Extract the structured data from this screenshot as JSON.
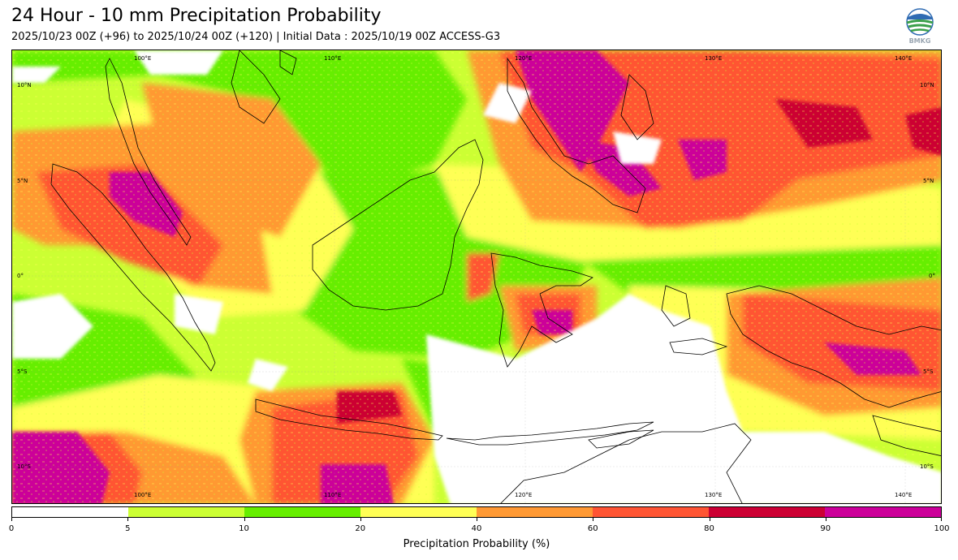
{
  "header": {
    "title": "24 Hour - 10 mm Precipitation Probability",
    "subtitle": "2025/10/23 00Z (+96) to 2025/10/24 00Z (+120) | Initial Data : 2025/10/19 00Z ACCESS-G3"
  },
  "logo": {
    "text": "BMKG"
  },
  "map": {
    "lon_labels_top": [
      "100°E",
      "110°E",
      "120°E",
      "130°E",
      "140°E"
    ],
    "lon_labels_bottom": [
      "100°E",
      "110°E",
      "120°E",
      "130°E",
      "140°E"
    ],
    "lat_labels_left": [
      "10°N",
      "5°N",
      "0°",
      "5°S",
      "10°S"
    ],
    "lat_labels_right": [
      "10°N",
      "5°N",
      "0°",
      "5°S",
      "10°S"
    ]
  },
  "colorbar": {
    "title": "Precipitation Probability (%)",
    "ticks": [
      "0",
      "5",
      "10",
      "20",
      "40",
      "60",
      "80",
      "90",
      "100"
    ],
    "colors": [
      "#ffffff",
      "#ccff33",
      "#66ee00",
      "#ffff55",
      "#ff9933",
      "#ff5533",
      "#cc0033",
      "#cc0099"
    ]
  }
}
